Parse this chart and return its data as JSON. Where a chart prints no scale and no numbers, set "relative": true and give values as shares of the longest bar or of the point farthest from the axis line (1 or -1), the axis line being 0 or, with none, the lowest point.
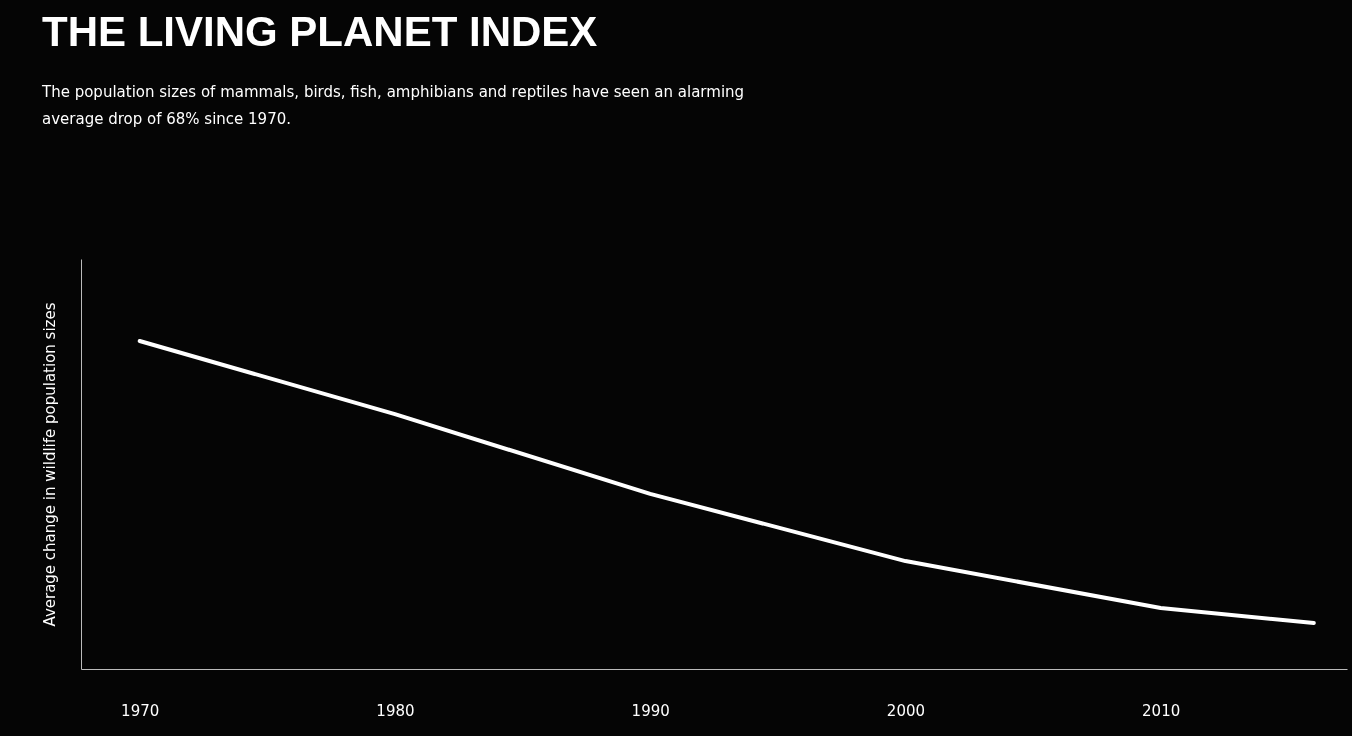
{
  "chart_data": {
    "type": "line",
    "title": "THE LIVING PLANET INDEX",
    "subtitle": "The population sizes of mammals, birds, fish, amphibians and reptiles have seen an alarming average drop of 68% since 1970.",
    "ylabel": "Average change in wildlife population sizes",
    "relative": true,
    "x": [
      1970,
      1980,
      1990,
      2000,
      2010,
      2016
    ],
    "series": [
      {
        "color": "#ffffff",
        "values": [
          1,
          0.777,
          0.534,
          0.329,
          0.186,
          0.14
        ]
      }
    ],
    "xlim": [
      1967.7,
      2017.3
    ],
    "xticks": [
      1970,
      1980,
      1990,
      2000,
      2010
    ],
    "grid": false,
    "marker": "none",
    "line_style": "solid"
  }
}
